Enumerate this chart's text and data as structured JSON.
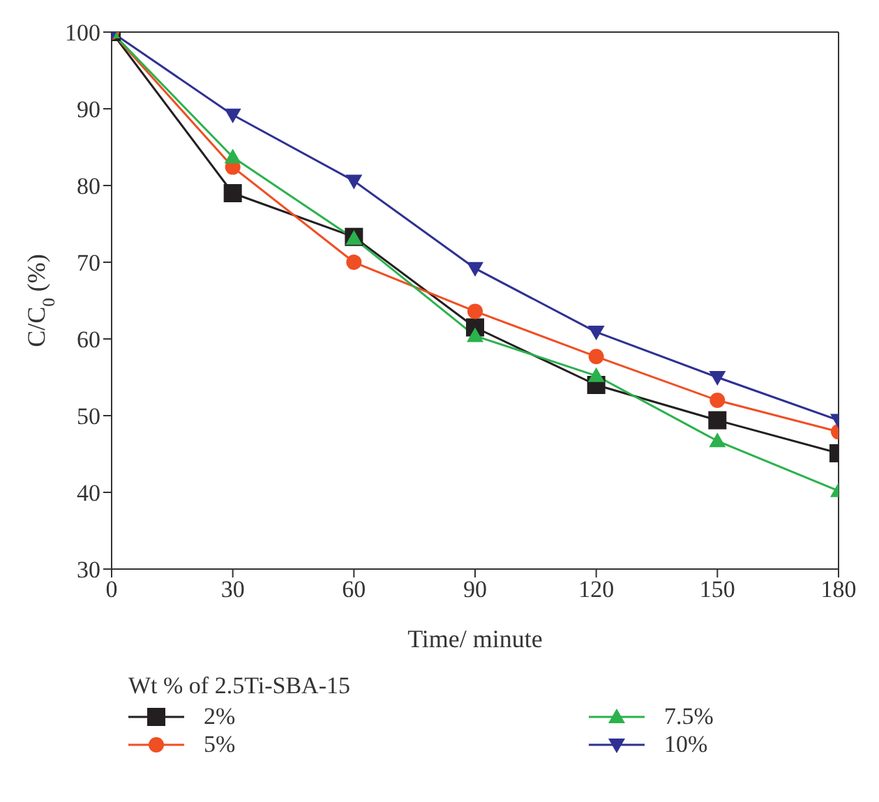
{
  "chart_data": {
    "type": "line",
    "xlabel": "Time/ minute",
    "ylabel": "C/C$_{0}$ (%)",
    "legend_title": "Wt % of 2.5Ti-SBA-15",
    "x": [
      0,
      30,
      60,
      90,
      120,
      150,
      180
    ],
    "xlim": [
      0,
      180
    ],
    "xticks": [
      0,
      30,
      60,
      90,
      120,
      150,
      180
    ],
    "ylim": [
      30,
      100
    ],
    "yticks": [
      30,
      40,
      50,
      60,
      70,
      80,
      90,
      100
    ],
    "grid": false,
    "legend": "bottom",
    "line_style": "solid",
    "series": [
      {
        "name": "2%",
        "color": "#231f20",
        "marker": "square",
        "values": [
          100,
          79.0,
          73.3,
          61.5,
          54.0,
          49.4,
          45.1
        ]
      },
      {
        "name": "5%",
        "color": "#f04e23",
        "marker": "circle",
        "values": [
          100,
          82.4,
          70.0,
          63.6,
          57.7,
          52.0,
          47.9
        ]
      },
      {
        "name": "7.5%",
        "color": "#2bb24c",
        "marker": "triangle",
        "values": [
          100,
          83.7,
          73.1,
          60.4,
          55.2,
          46.7,
          40.2
        ]
      },
      {
        "name": "10%",
        "color": "#2e3192",
        "marker": "triangle-down",
        "values": [
          100,
          89.2,
          80.6,
          69.2,
          60.9,
          55.0,
          49.4
        ]
      }
    ]
  }
}
